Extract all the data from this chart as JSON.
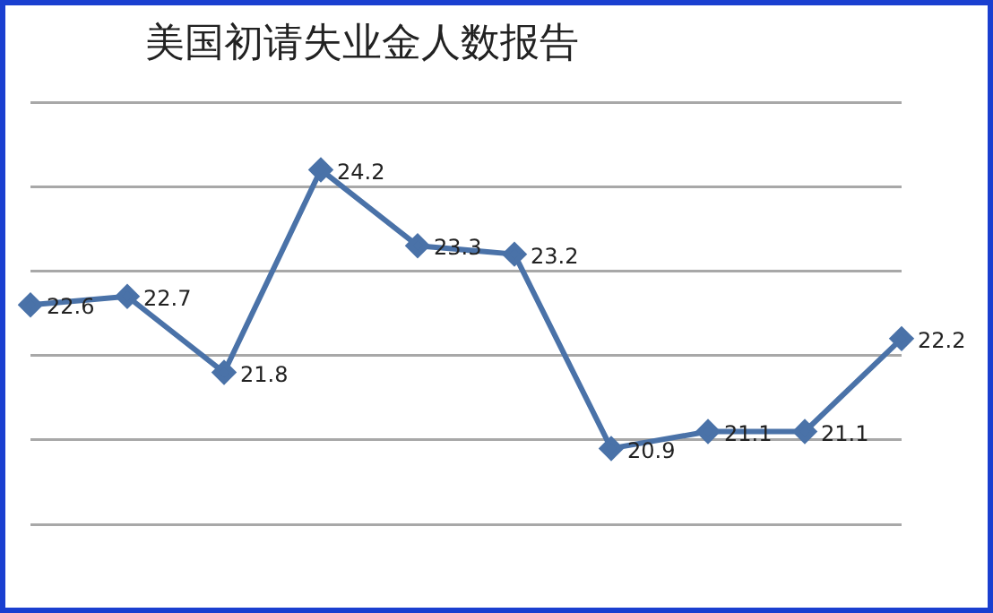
{
  "chart_data": {
    "type": "line",
    "title": "美国初请失业金人数报告",
    "categories": [
      null,
      null,
      null,
      null,
      null,
      null,
      null,
      null,
      null,
      null
    ],
    "series": [
      {
        "color": "#4a72a8",
        "values": [
          22.6,
          22.7,
          21.8,
          24.2,
          23.3,
          23.2,
          20.9,
          21.1,
          21.1,
          22.2
        ]
      }
    ],
    "ylim": [
      20,
      25
    ],
    "yticks": [
      {
        "value": 20,
        "label": null
      },
      {
        "value": 21,
        "label": null
      },
      {
        "value": 22,
        "label": null
      },
      {
        "value": 23,
        "label": null
      },
      {
        "value": 24,
        "label": null
      },
      {
        "value": 25,
        "label": null
      }
    ],
    "grid": "y",
    "marker": "diamond",
    "line_style": "solid",
    "data_labels": true,
    "legend": false
  }
}
